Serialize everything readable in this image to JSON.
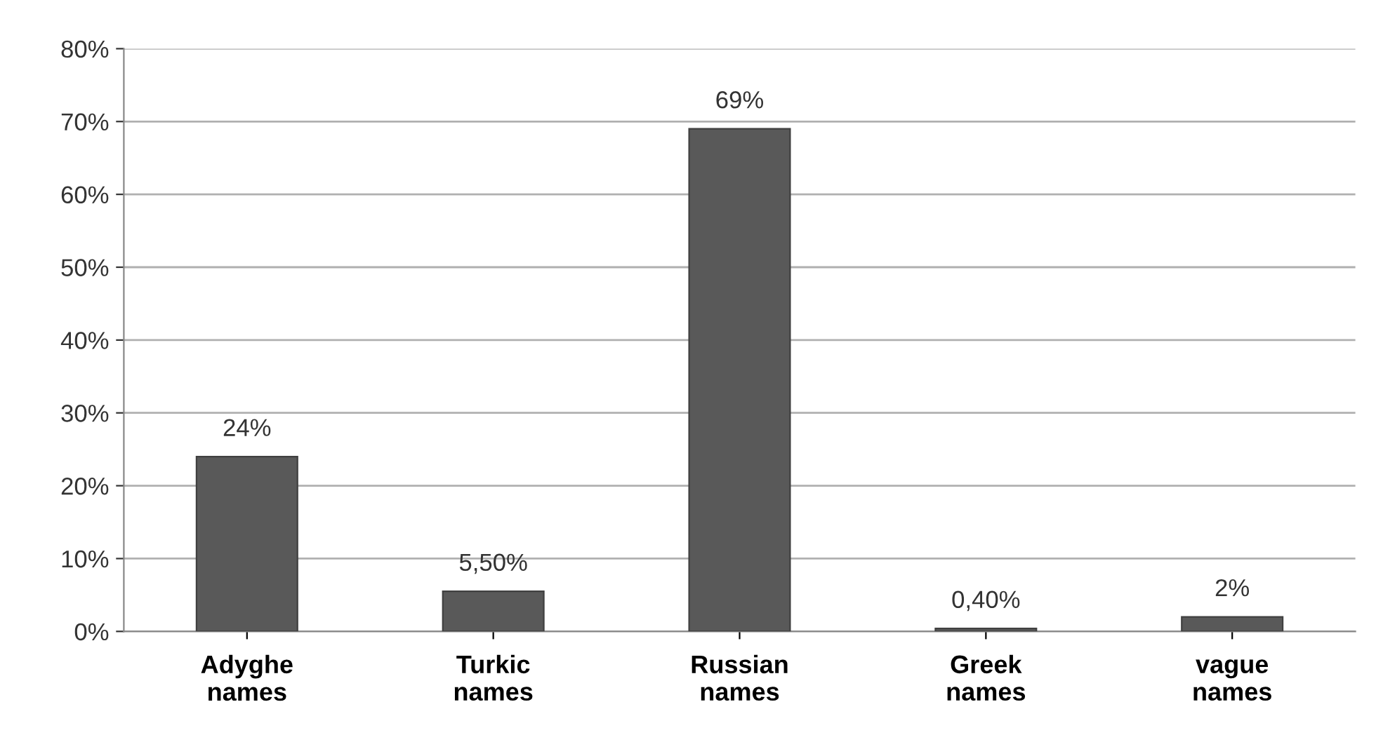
{
  "chart_data": {
    "type": "bar",
    "categories": [
      "Adyghe\nnames",
      "Turkic\nnames",
      "Russian\nnames",
      "Greek\nnames",
      "vague\nnames"
    ],
    "values": [
      24,
      5.5,
      69,
      0.4,
      2
    ],
    "value_labels": [
      "24%",
      "5,50%",
      "69%",
      "0,40%",
      "2%"
    ],
    "color": "#595959",
    "ylim": [
      0,
      80
    ],
    "yticks": [
      {
        "value": 0,
        "label": "0%"
      },
      {
        "value": 10,
        "label": "10%"
      },
      {
        "value": 20,
        "label": "20%"
      },
      {
        "value": 30,
        "label": "30%"
      },
      {
        "value": 40,
        "label": "40%"
      },
      {
        "value": 50,
        "label": "50%"
      },
      {
        "value": 60,
        "label": "60%"
      },
      {
        "value": 70,
        "label": "70%"
      },
      {
        "value": 80,
        "label": "80%"
      }
    ],
    "grid": "y"
  }
}
